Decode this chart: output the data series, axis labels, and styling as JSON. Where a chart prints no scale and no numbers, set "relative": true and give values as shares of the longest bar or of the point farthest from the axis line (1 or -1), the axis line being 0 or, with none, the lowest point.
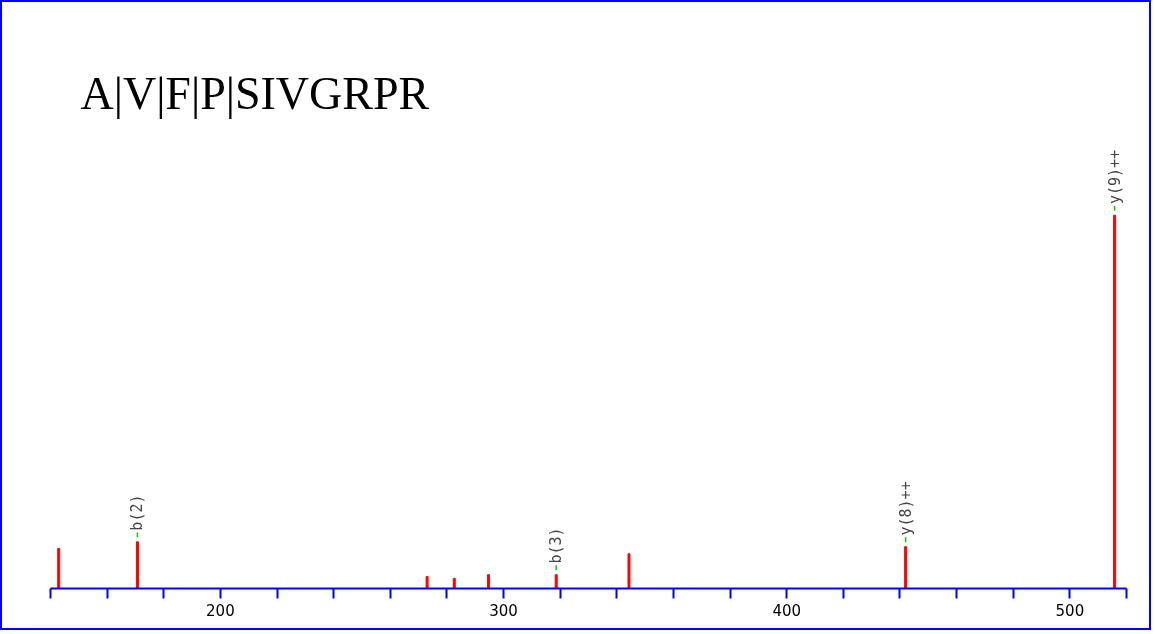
{
  "chart_data": {
    "type": "bar",
    "title": "A|V|F|P|SIVGRPR",
    "relative": true,
    "x": [
      142.9,
      170.7,
      273,
      282.6,
      294.7,
      318.6,
      344.3,
      442,
      515.8
    ],
    "values": [
      0.107,
      0.125,
      0.032,
      0.027,
      0.037,
      0.037,
      0.093,
      0.112,
      1
    ],
    "color": "#ff0000",
    "xlim": [
      140,
      520
    ],
    "xticks": [
      {
        "value": 140,
        "label": null
      },
      {
        "value": 160,
        "label": null
      },
      {
        "value": 180,
        "label": null
      },
      200,
      {
        "value": 220,
        "label": null
      },
      {
        "value": 240,
        "label": null
      },
      {
        "value": 260,
        "label": null
      },
      {
        "value": 280,
        "label": null
      },
      300,
      {
        "value": 320,
        "label": null
      },
      {
        "value": 340,
        "label": null
      },
      {
        "value": 360,
        "label": null
      },
      {
        "value": 380,
        "label": null
      },
      400,
      {
        "value": 420,
        "label": null
      },
      {
        "value": 440,
        "label": null
      },
      {
        "value": 460,
        "label": null
      },
      {
        "value": 480,
        "label": null
      },
      500,
      {
        "value": 520,
        "label": null
      }
    ],
    "annotations": [
      {
        "text": "b(2)",
        "x": 170.7,
        "y": 0.125
      },
      {
        "text": "b(3)",
        "x": 318.6,
        "y": 0.037
      },
      {
        "text": "y(8)++",
        "x": 442,
        "y": 0.112
      },
      {
        "text": "y(9)++",
        "x": 515.8,
        "y": 1
      }
    ],
    "grid": false
  }
}
